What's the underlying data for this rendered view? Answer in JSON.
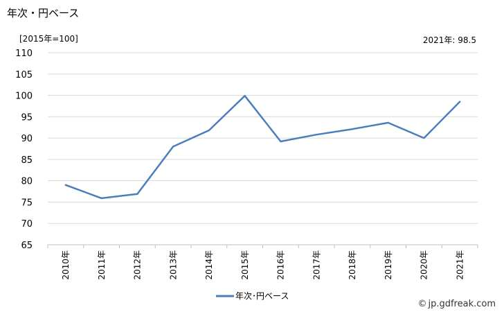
{
  "page": {
    "title": "年次・円ベース",
    "unit_note": "[2015年=100]",
    "latest_note": "2021年: 98.5",
    "credit": "jp.gdfreak.com",
    "credit_symbol": "©"
  },
  "chart_data": {
    "type": "line",
    "title": "年次・円ベース",
    "xlabel": "",
    "ylabel": "",
    "categories": [
      "2010年",
      "2011年",
      "2012年",
      "2013年",
      "2014年",
      "2015年",
      "2016年",
      "2017年",
      "2018年",
      "2019年",
      "2020年",
      "2021年"
    ],
    "series": [
      {
        "name": "年次･円ベース",
        "color": "#4a7ebb",
        "values": [
          79.0,
          75.9,
          76.9,
          88.0,
          91.8,
          99.9,
          89.2,
          90.8,
          92.1,
          93.6,
          90.0,
          98.5
        ]
      }
    ],
    "ylim": [
      65,
      110
    ],
    "yticks": [
      65,
      70,
      75,
      80,
      85,
      90,
      95,
      100,
      105,
      110
    ],
    "grid": true,
    "legend_position": "bottom"
  }
}
